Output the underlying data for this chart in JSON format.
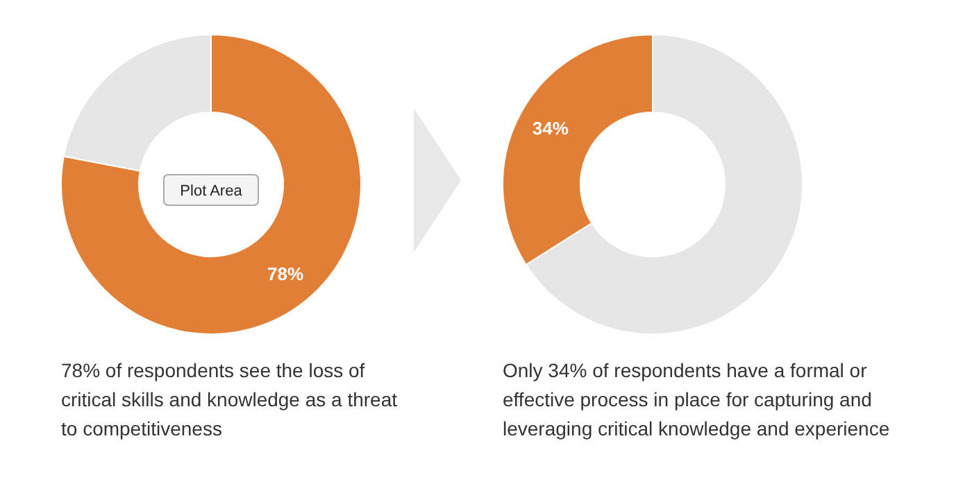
{
  "chart_data": [
    {
      "type": "donut",
      "categories": [
        null,
        null
      ],
      "values": [
        78,
        22
      ],
      "colors": [
        "#e07f35",
        "#e6e6e6"
      ],
      "value_labels": [
        "78%",
        null
      ],
      "annotations": [
        "Plot Area",
        "78% of respondents see the loss of\ncritical skills and knowledge as a threat\nto competitiveness"
      ]
    },
    {
      "type": "donut",
      "categories": [
        null,
        null
      ],
      "values": [
        66,
        34
      ],
      "colors": [
        "#e6e6e6",
        "#e07f35"
      ],
      "value_labels": [
        null,
        "34%"
      ],
      "annotations": [
        "Only 34% of respondents have a formal or\neffective process in place for capturing and\nleveraging critical knowledge and experience"
      ]
    }
  ]
}
